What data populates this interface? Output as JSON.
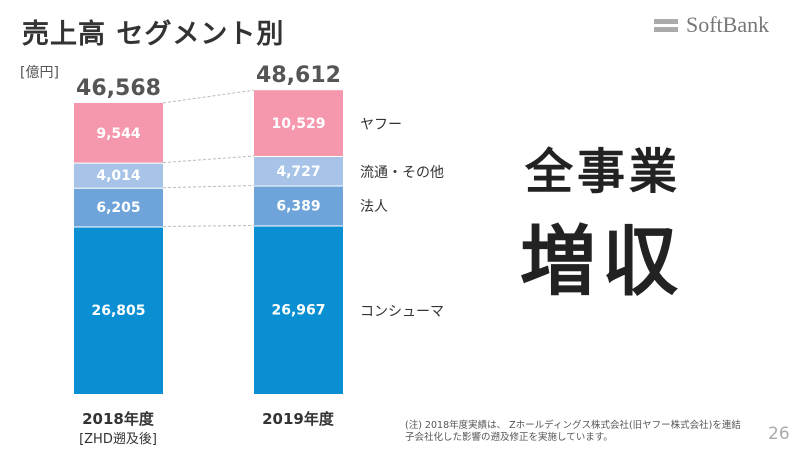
{
  "header": {
    "title": "売上高 セグメント別",
    "logo": "SoftBank"
  },
  "chart_data": {
    "type": "bar",
    "stacked": true,
    "unit_label": "[億円]",
    "categories": [
      "2018年度",
      "2019年度"
    ],
    "category_sublabels": [
      "[ZHD遡及後]",
      ""
    ],
    "totals": [
      "46,568",
      "48,612"
    ],
    "total_values": [
      46568,
      48612
    ],
    "series": [
      {
        "name": "コンシューマ",
        "values": [
          26805,
          26967
        ],
        "labels": [
          "26,805",
          "26,967"
        ],
        "color": "#0a8fd2"
      },
      {
        "name": "法人",
        "values": [
          6205,
          6389
        ],
        "labels": [
          "6,205",
          "6,389"
        ],
        "color": "#6ea4d9"
      },
      {
        "name": "流通・その他",
        "values": [
          4014,
          4727
        ],
        "labels": [
          "4,014",
          "4,727"
        ],
        "color": "#a7c4e8"
      },
      {
        "name": "ヤフー",
        "values": [
          9544,
          10529
        ],
        "labels": [
          "9,544",
          "10,529"
        ],
        "color": "#f698ad"
      }
    ],
    "ylim": [
      0,
      50000
    ],
    "grid": false
  },
  "headline": {
    "line1": "全事業",
    "line2": "増収"
  },
  "footnote": "(注) 2018年度実績は、 Zホールディングス株式会社(旧ヤフー株式会社)を連結子会社化した影響の遡及修正を実施しています。",
  "page_number": "26"
}
